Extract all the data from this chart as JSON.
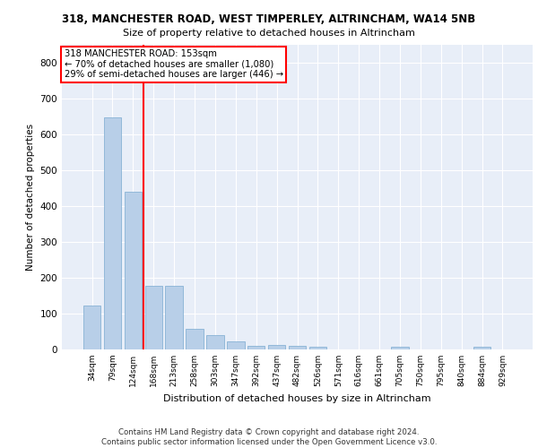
{
  "title1": "318, MANCHESTER ROAD, WEST TIMPERLEY, ALTRINCHAM, WA14 5NB",
  "title2": "Size of property relative to detached houses in Altrincham",
  "xlabel": "Distribution of detached houses by size in Altrincham",
  "ylabel": "Number of detached properties",
  "categories": [
    "34sqm",
    "79sqm",
    "124sqm",
    "168sqm",
    "213sqm",
    "258sqm",
    "303sqm",
    "347sqm",
    "392sqm",
    "437sqm",
    "482sqm",
    "526sqm",
    "571sqm",
    "616sqm",
    "661sqm",
    "705sqm",
    "750sqm",
    "795sqm",
    "840sqm",
    "884sqm",
    "929sqm"
  ],
  "values": [
    123,
    648,
    440,
    178,
    178,
    57,
    40,
    23,
    11,
    13,
    11,
    8,
    0,
    0,
    0,
    7,
    0,
    0,
    0,
    7,
    0
  ],
  "bar_color": "#b8cfe8",
  "bar_edge_color": "#7aaad0",
  "vline_x": 2.5,
  "vline_color": "red",
  "annotation_text": "318 MANCHESTER ROAD: 153sqm\n← 70% of detached houses are smaller (1,080)\n29% of semi-detached houses are larger (446) →",
  "annotation_box_color": "white",
  "annotation_box_edge": "red",
  "background_color": "#e8eef8",
  "grid_color": "white",
  "footer": "Contains HM Land Registry data © Crown copyright and database right 2024.\nContains public sector information licensed under the Open Government Licence v3.0.",
  "ylim": [
    0,
    850
  ],
  "yticks": [
    0,
    100,
    200,
    300,
    400,
    500,
    600,
    700,
    800
  ]
}
